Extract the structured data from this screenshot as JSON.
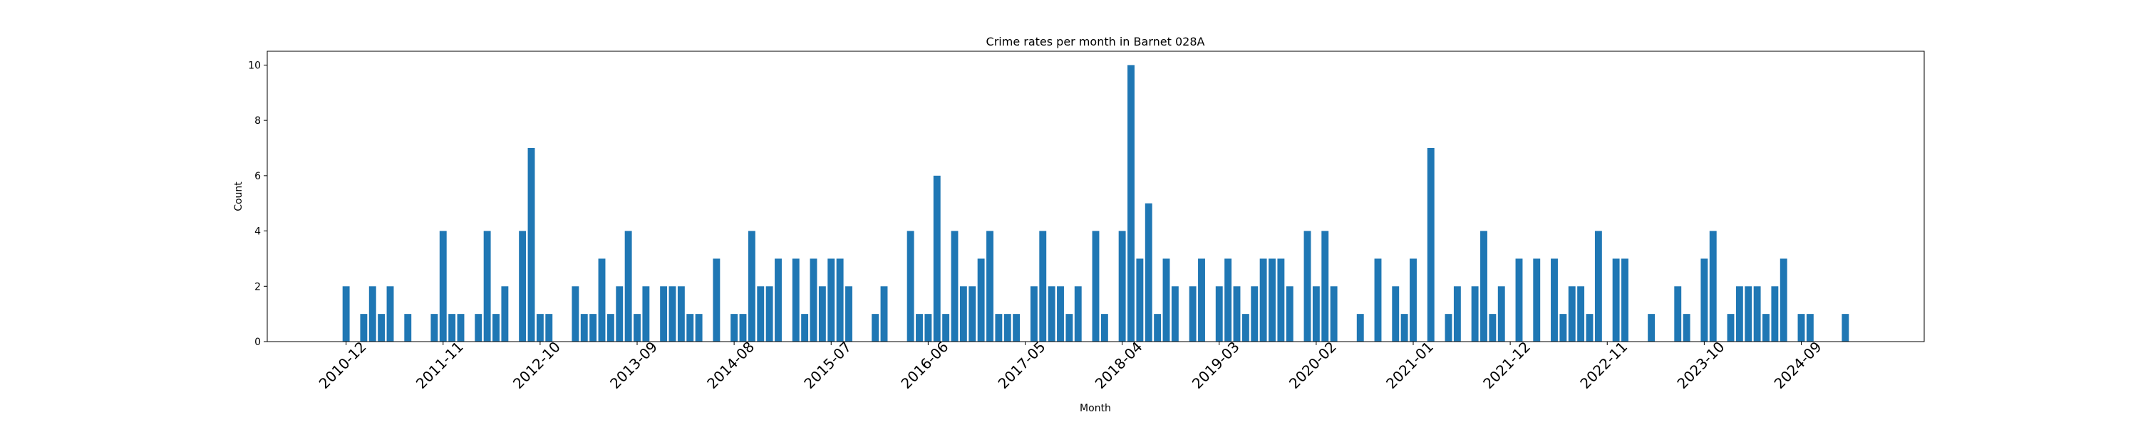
{
  "chart_data": {
    "type": "bar",
    "title": "Crime rates per month in Barnet 028A",
    "xlabel": "Month",
    "ylabel": "Count",
    "categories": [
      "2010-12",
      null,
      null,
      null,
      null,
      null,
      null,
      null,
      null,
      null,
      null,
      "2011-11",
      null,
      null,
      null,
      null,
      null,
      null,
      null,
      null,
      null,
      null,
      "2012-10",
      null,
      null,
      null,
      null,
      null,
      null,
      null,
      null,
      null,
      null,
      "2013-09",
      null,
      null,
      null,
      null,
      null,
      null,
      null,
      null,
      null,
      null,
      "2014-08",
      null,
      null,
      null,
      null,
      null,
      null,
      null,
      null,
      null,
      null,
      "2015-07",
      null,
      null,
      null,
      null,
      null,
      null,
      null,
      null,
      null,
      null,
      "2016-06",
      null,
      null,
      null,
      null,
      null,
      null,
      null,
      null,
      null,
      null,
      "2017-05",
      null,
      null,
      null,
      null,
      null,
      null,
      null,
      null,
      null,
      null,
      "2018-04",
      null,
      null,
      null,
      null,
      null,
      null,
      null,
      null,
      null,
      null,
      "2019-03",
      null,
      null,
      null,
      null,
      null,
      null,
      null,
      null,
      null,
      null,
      "2020-02",
      null,
      null,
      null,
      null,
      null,
      null,
      null,
      null,
      null,
      null,
      "2021-01",
      null,
      null,
      null,
      null,
      null,
      null,
      null,
      null,
      null,
      null,
      "2021-12",
      null,
      null,
      null,
      null,
      null,
      null,
      null,
      null,
      null,
      null,
      "2022-11",
      null,
      null,
      null,
      null,
      null,
      null,
      null,
      null,
      null,
      null,
      "2023-10",
      null,
      null,
      null,
      null,
      null,
      null,
      null,
      null,
      null,
      null,
      "2024-09",
      null,
      null,
      null,
      null,
      null
    ],
    "values": [
      2,
      0,
      1,
      2,
      1,
      2,
      0,
      1,
      0,
      0,
      1,
      4,
      1,
      1,
      0,
      1,
      4,
      1,
      2,
      0,
      4,
      7,
      1,
      1,
      0,
      0,
      2,
      1,
      1,
      3,
      1,
      2,
      4,
      1,
      2,
      0,
      2,
      2,
      2,
      1,
      1,
      0,
      3,
      0,
      1,
      1,
      4,
      2,
      2,
      3,
      0,
      3,
      1,
      3,
      2,
      3,
      3,
      2,
      0,
      0,
      1,
      2,
      0,
      0,
      4,
      1,
      1,
      6,
      1,
      4,
      2,
      2,
      3,
      4,
      1,
      1,
      1,
      0,
      2,
      4,
      2,
      2,
      1,
      2,
      0,
      4,
      1,
      0,
      4,
      10,
      3,
      5,
      1,
      3,
      2,
      0,
      2,
      3,
      0,
      2,
      3,
      2,
      1,
      2,
      3,
      3,
      3,
      2,
      0,
      4,
      2,
      4,
      2,
      0,
      0,
      1,
      0,
      3,
      0,
      2,
      1,
      3,
      0,
      7,
      0,
      1,
      2,
      0,
      2,
      4,
      1,
      2,
      0,
      3,
      0,
      3,
      0,
      3,
      1,
      2,
      2,
      1,
      4,
      0,
      3,
      3,
      0,
      0,
      1,
      0,
      0,
      2,
      1,
      0,
      3,
      4,
      0,
      1,
      2,
      2,
      2,
      1,
      2,
      3,
      0,
      1,
      1,
      0,
      0,
      0,
      1
    ],
    "color": "#1f77b4",
    "ylim": [
      0,
      10.5
    ],
    "yticks": [
      0,
      2,
      4,
      6,
      8,
      10
    ]
  }
}
